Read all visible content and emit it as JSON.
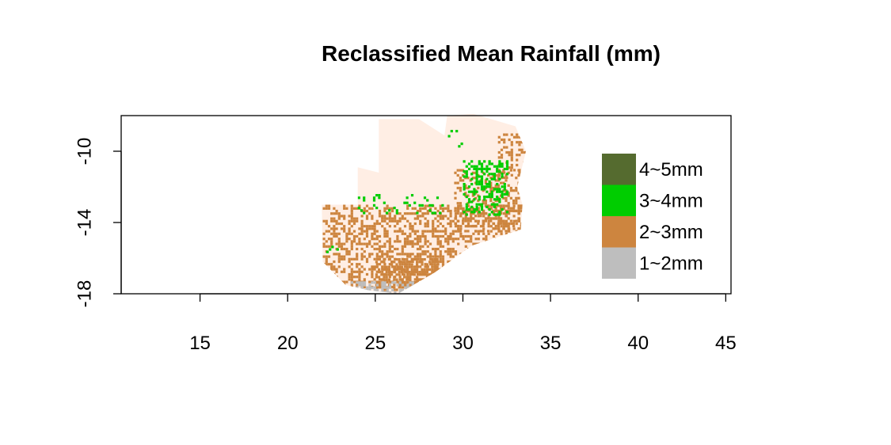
{
  "title": "Reclassified Mean Rainfall (mm)",
  "chart_data": {
    "type": "heatmap",
    "title": "Reclassified Mean Rainfall (mm)",
    "xlabel": "",
    "ylabel": "",
    "xlim": [
      10.5,
      45.3
    ],
    "ylim": [
      -18.0,
      -8.0
    ],
    "x_ticks": [
      15,
      20,
      25,
      30,
      35,
      40,
      45
    ],
    "y_ticks": [
      -10,
      -14,
      -18
    ],
    "x_tick_labels": [
      "15",
      "20",
      "25",
      "30",
      "35",
      "40",
      "45"
    ],
    "y_tick_labels": [
      "-10",
      "-14",
      "-18"
    ],
    "grid": false,
    "legend_position": "right",
    "legend": [
      {
        "label": "4~5mm",
        "color": "#556b2f"
      },
      {
        "label": "3~4mm",
        "color": "#00cd00"
      },
      {
        "label": "2~3mm",
        "color": "#cd853f"
      },
      {
        "label": "1~2mm",
        "color": "#bebebe"
      }
    ],
    "background_color": "#ffeee4",
    "country_outline": [
      [
        25.2,
        -8.2
      ],
      [
        27.5,
        -8.2
      ],
      [
        29.4,
        -9.4
      ],
      [
        28.8,
        -10.2
      ],
      [
        29.1,
        -8.0
      ],
      [
        30.6,
        -7.9
      ],
      [
        33.0,
        -8.6
      ],
      [
        33.6,
        -10.0
      ],
      [
        33.1,
        -12.0
      ],
      [
        33.4,
        -13.0
      ],
      [
        33.3,
        -14.4
      ],
      [
        30.5,
        -15.3
      ],
      [
        28.4,
        -16.8
      ],
      [
        26.3,
        -18.0
      ],
      [
        24.6,
        -17.8
      ],
      [
        23.3,
        -17.5
      ],
      [
        22.0,
        -16.2
      ],
      [
        21.95,
        -13.0
      ],
      [
        24.0,
        -13.0
      ],
      [
        24.0,
        -10.9
      ],
      [
        25.2,
        -11.2
      ]
    ],
    "classes": [
      {
        "label": "2~3mm",
        "color": "#cd853f",
        "regions": [
          {
            "x": [
              22.0,
              33.5
            ],
            "y": [
              -17.6,
              -13.0
            ],
            "density": 0.45
          },
          {
            "x": [
              29.5,
              33.5
            ],
            "y": [
              -14.5,
              -11.0
            ],
            "density": 0.35
          },
          {
            "x": [
              32.0,
              33.5
            ],
            "y": [
              -11.5,
              -9.0
            ],
            "density": 0.3
          },
          {
            "x": [
              25.0,
              28.5
            ],
            "y": [
              -17.8,
              -16.0
            ],
            "density": 0.6
          }
        ]
      },
      {
        "label": "3~4mm",
        "color": "#00cd00",
        "regions": [
          {
            "x": [
              24.0,
              29.0
            ],
            "y": [
              -13.5,
              -12.4
            ],
            "density": 0.12
          },
          {
            "x": [
              30.0,
              32.5
            ],
            "y": [
              -13.5,
              -10.5
            ],
            "density": 0.4
          },
          {
            "x": [
              29.0,
              30.0
            ],
            "y": [
              -9.8,
              -8.8
            ],
            "density": 0.08
          },
          {
            "x": [
              22.2,
              22.9
            ],
            "y": [
              -15.8,
              -15.3
            ],
            "density": 0.35
          }
        ]
      },
      {
        "label": "1~2mm",
        "color": "#bebebe",
        "regions": [
          {
            "x": [
              23.6,
              27.2
            ],
            "y": [
              -18.0,
              -17.3
            ],
            "density": 0.55
          }
        ]
      }
    ]
  }
}
